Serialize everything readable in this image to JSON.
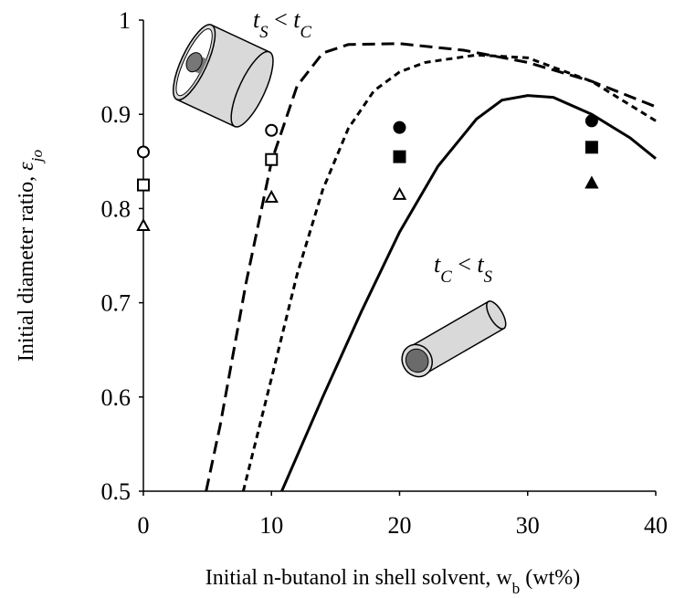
{
  "chart_data": {
    "type": "scatter",
    "ylabel": [
      {
        "text": "Initial diameter ratio, "
      },
      {
        "text": "ε",
        "italic": true
      },
      {
        "text": "jo",
        "italic": true,
        "sub": true
      }
    ],
    "xlabel": [
      {
        "text": "Initial n-butanol in shell solvent, w"
      },
      {
        "text": "b",
        "sub": true
      },
      {
        "text": " (wt%)"
      }
    ],
    "xlim": [
      0,
      40
    ],
    "xticks": [
      0,
      10,
      20,
      30,
      40
    ],
    "ylim": [
      0.5,
      1
    ],
    "yticks": [
      0.5,
      0.6,
      0.7,
      0.8,
      0.9,
      1
    ],
    "series": [
      {
        "marker": "circle",
        "color": "#000000",
        "x": [
          0,
          10,
          20,
          35
        ],
        "values": [
          0.86,
          0.883,
          0.886,
          0.893
        ],
        "fill": [
          "none",
          "none",
          "#000000",
          "#000000"
        ]
      },
      {
        "marker": "square",
        "color": "#000000",
        "x": [
          0,
          10,
          20,
          35
        ],
        "values": [
          0.825,
          0.852,
          0.855,
          0.865
        ],
        "fill": [
          "none",
          "none",
          "#000000",
          "#000000"
        ]
      },
      {
        "marker": "triangle",
        "color": "#000000",
        "x": [
          0,
          10,
          20,
          35
        ],
        "values": [
          0.782,
          0.812,
          0.815,
          0.827
        ],
        "fill": [
          "none",
          "none",
          "none",
          "#000000"
        ]
      }
    ],
    "lines": [
      {
        "dash": "long",
        "color": "#000000",
        "x": [
          4.9,
          6,
          8,
          10,
          12,
          14,
          16,
          20,
          25,
          30,
          35,
          40
        ],
        "values": [
          0.5,
          0.57,
          0.72,
          0.85,
          0.93,
          0.965,
          0.974,
          0.975,
          0.968,
          0.955,
          0.935,
          0.908
        ]
      },
      {
        "dash": "short",
        "color": "#000000",
        "x": [
          7.8,
          10,
          12,
          14,
          16,
          18,
          20,
          22,
          26,
          30,
          35,
          40
        ],
        "values": [
          0.5,
          0.62,
          0.73,
          0.82,
          0.885,
          0.925,
          0.945,
          0.955,
          0.963,
          0.96,
          0.935,
          0.893
        ]
      },
      {
        "dash": "solid",
        "color": "#000000",
        "x": [
          10.8,
          14,
          17,
          20,
          23,
          26,
          28,
          30,
          32,
          35,
          38,
          40
        ],
        "values": [
          0.5,
          0.6,
          0.69,
          0.775,
          0.845,
          0.895,
          0.915,
          0.92,
          0.918,
          0.9,
          0.875,
          0.853
        ]
      }
    ],
    "annotations": [
      [
        {
          "text": "t",
          "italic": true
        },
        {
          "text": "S",
          "italic": true,
          "sub": true
        },
        {
          "text": " < "
        },
        {
          "text": "t",
          "italic": true
        },
        {
          "text": "C",
          "italic": true,
          "sub": true
        }
      ],
      [
        {
          "text": "t",
          "italic": true
        },
        {
          "text": "C",
          "italic": true,
          "sub": true
        },
        {
          "text": " < "
        },
        {
          "text": "t",
          "italic": true
        },
        {
          "text": "S",
          "italic": true,
          "sub": true
        }
      ]
    ]
  }
}
